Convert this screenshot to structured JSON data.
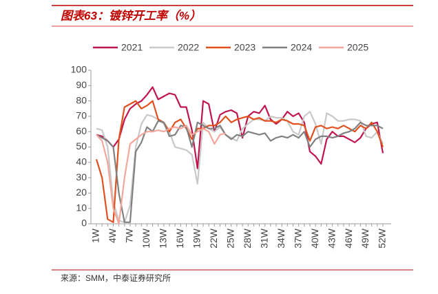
{
  "chart_data": {
    "type": "line",
    "title": "图表63：镀锌开工率（%）",
    "source": "来源：SMM，中泰证券研究所",
    "categories": [
      "1W",
      null,
      null,
      "4W",
      null,
      null,
      "7W",
      null,
      null,
      "10W",
      null,
      null,
      "13W",
      null,
      null,
      "16W",
      null,
      null,
      "19W",
      null,
      null,
      "22W",
      null,
      null,
      "25W",
      null,
      null,
      "28W",
      null,
      null,
      "31W",
      null,
      null,
      "34W",
      null,
      null,
      "37W",
      null,
      null,
      "40W",
      null,
      null,
      "43W",
      null,
      null,
      "46W",
      null,
      null,
      "49W",
      null,
      null,
      "52W"
    ],
    "ylim": [
      0,
      100
    ],
    "yticks": [
      0,
      10,
      20,
      30,
      40,
      50,
      60,
      70,
      80,
      90,
      100
    ],
    "grid": false,
    "legend": "top",
    "series": [
      {
        "name": "2021",
        "color": "#c0144c",
        "values": [
          58,
          57,
          54,
          50,
          55,
          68,
          75,
          78,
          80,
          84,
          89,
          81,
          83,
          85,
          84,
          76,
          76,
          61,
          36,
          80,
          78,
          60,
          71,
          73,
          74,
          72,
          56,
          70,
          73,
          72,
          77,
          68,
          65,
          68,
          73,
          70,
          72,
          66,
          47,
          44,
          39,
          55,
          60,
          57,
          57,
          55,
          53,
          56,
          62,
          65,
          66,
          46
        ]
      },
      {
        "name": "2022",
        "color": "#c8c8c8",
        "values": [
          62,
          61,
          50,
          14,
          2,
          1,
          12,
          50,
          65,
          71,
          70,
          68,
          65,
          60,
          50,
          49,
          48,
          45,
          26,
          66,
          62,
          60,
          63,
          58,
          56,
          54,
          62,
          65,
          68,
          68,
          67,
          70,
          69,
          69,
          67,
          60,
          58,
          70,
          73,
          65,
          52,
          72,
          70,
          67,
          67,
          68,
          68,
          67,
          57,
          56,
          60,
          52
        ]
      },
      {
        "name": "2023",
        "color": "#e0501e",
        "values": [
          42,
          30,
          3,
          1,
          55,
          76,
          78,
          80,
          75,
          77,
          80,
          68,
          66,
          60,
          66,
          68,
          62,
          55,
          62,
          62,
          64,
          64,
          66,
          70,
          66,
          68,
          69,
          70,
          68,
          69,
          67,
          67,
          66,
          68,
          67,
          65,
          65,
          64,
          54,
          63,
          64,
          62,
          63,
          62,
          64,
          62,
          60,
          64,
          62,
          66,
          60,
          50
        ]
      },
      {
        "name": "2024",
        "color": "#808080",
        "values": [
          58,
          56,
          54,
          50,
          20,
          1,
          1,
          47,
          53,
          63,
          60,
          67,
          66,
          57,
          58,
          64,
          63,
          50,
          66,
          64,
          62,
          62,
          64,
          58,
          55,
          58,
          57,
          60,
          59,
          58,
          59,
          54,
          56,
          57,
          56,
          58,
          56,
          60,
          50,
          55,
          57,
          57,
          56,
          57,
          59,
          60,
          62,
          66,
          64,
          64,
          64,
          62
        ]
      },
      {
        "name": "2025",
        "color": "#f4a69a",
        "values": [
          58,
          54,
          40,
          10,
          0,
          30,
          52,
          55,
          58,
          60,
          60,
          61,
          60,
          62,
          63,
          62,
          64,
          58,
          60,
          62,
          60,
          52,
          58,
          59,
          null,
          null,
          null,
          null,
          null,
          null,
          null,
          null,
          null,
          null,
          null,
          null,
          null,
          null,
          null,
          null,
          null,
          null,
          null,
          null,
          null,
          null,
          null,
          null,
          null,
          null,
          null,
          null
        ]
      }
    ]
  }
}
